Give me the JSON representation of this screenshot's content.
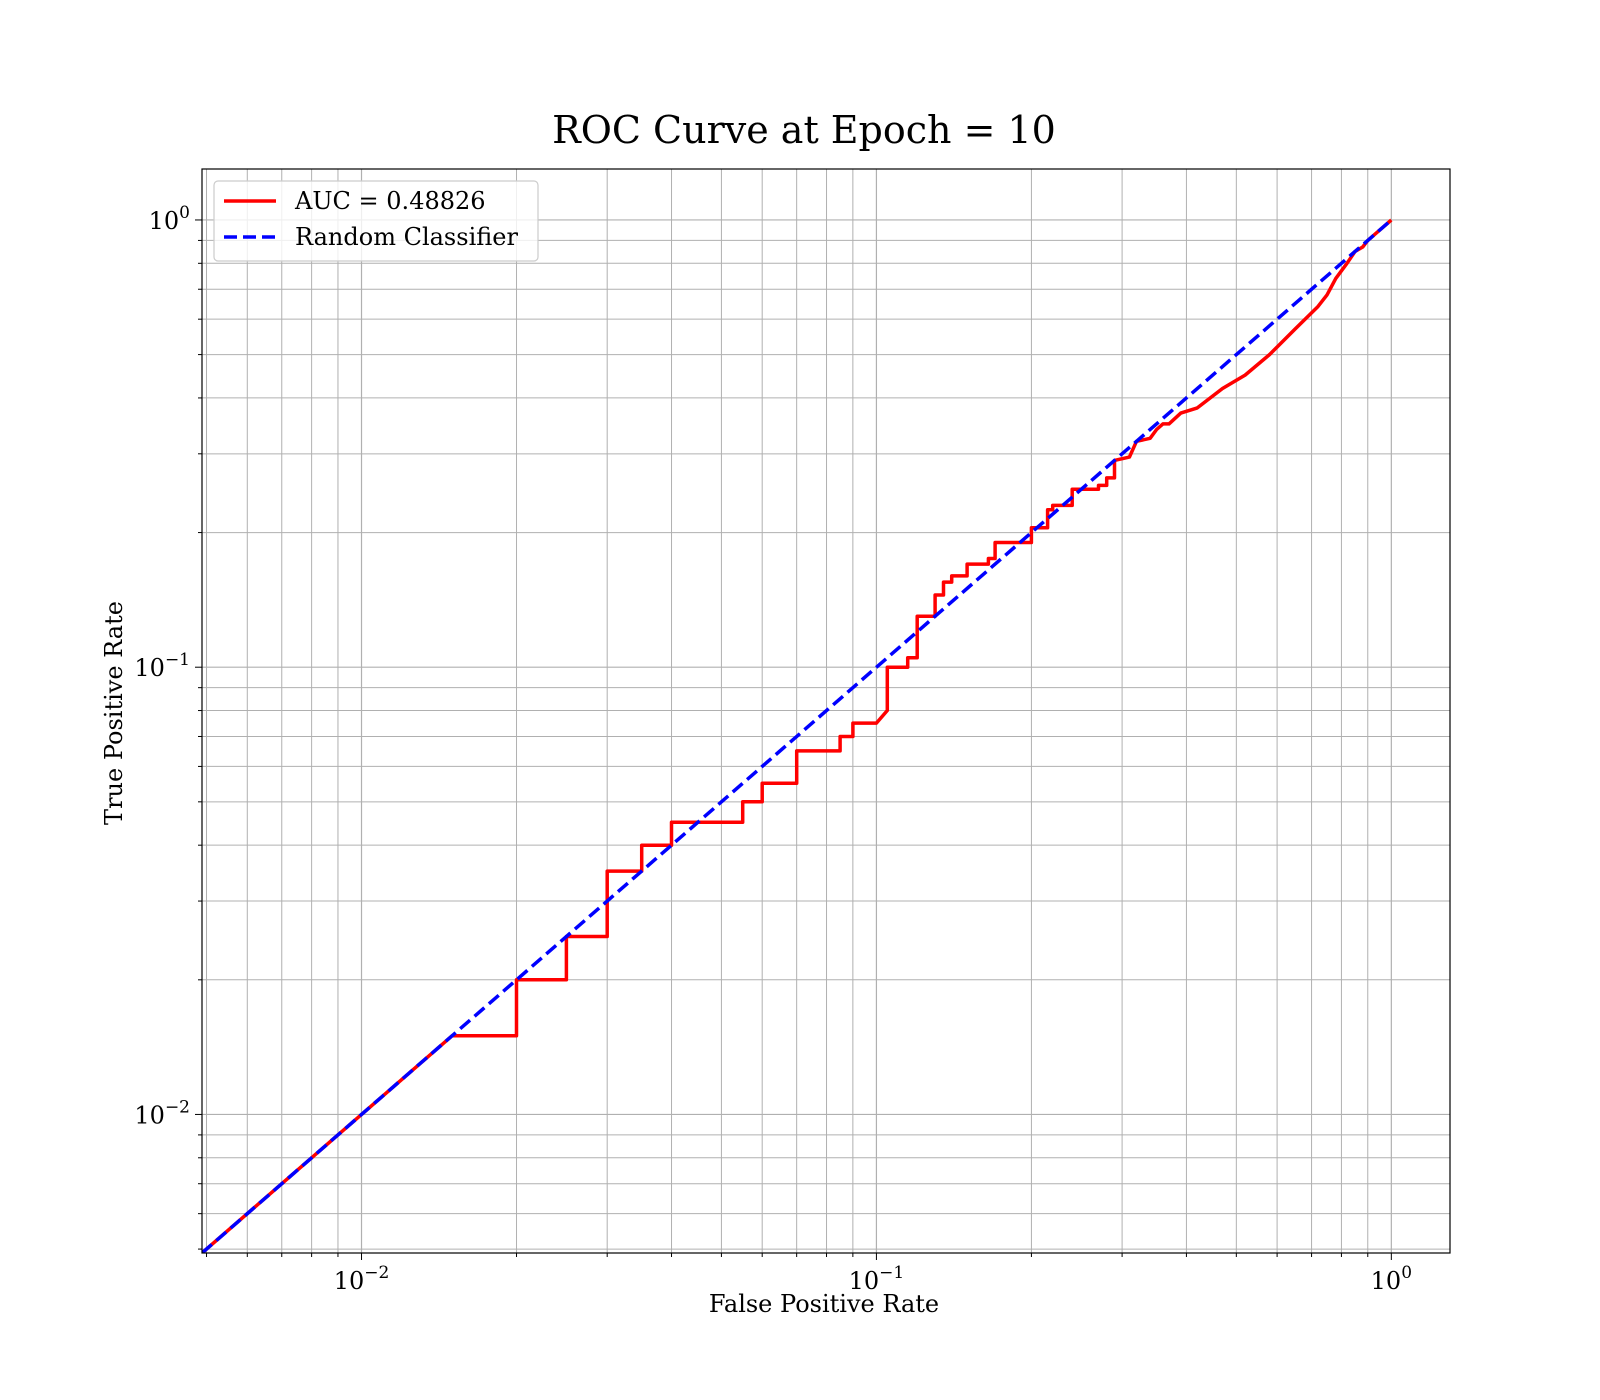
{
  "chart_data": {
    "type": "line",
    "title": "ROC Curve at Epoch = 10",
    "xlabel": "False Positive Rate",
    "ylabel": "True Positive Rate",
    "xscale": "log",
    "yscale": "log",
    "xlim": [
      0.0049,
      1.3
    ],
    "ylim": [
      0.0049,
      1.3
    ],
    "grid": "on (major and minor)",
    "legend_position": "upper left",
    "x_tick_labels": [
      {
        "value": 0.01,
        "base": "10",
        "exp": "−2"
      },
      {
        "value": 0.1,
        "base": "10",
        "exp": "−1"
      },
      {
        "value": 1,
        "base": "10",
        "exp": "0"
      }
    ],
    "y_tick_labels": [
      {
        "value": 0.01,
        "base": "10",
        "exp": "−2"
      },
      {
        "value": 0.1,
        "base": "10",
        "exp": "−1"
      },
      {
        "value": 1,
        "base": "10",
        "exp": "0"
      }
    ],
    "series": [
      {
        "name": "AUC = 0.48826",
        "color": "#ff0000",
        "style": "solid",
        "points": [
          [
            0.0049,
            0.0049
          ],
          [
            0.015,
            0.015
          ],
          [
            0.02,
            0.015
          ],
          [
            0.02,
            0.02
          ],
          [
            0.025,
            0.02
          ],
          [
            0.025,
            0.025
          ],
          [
            0.03,
            0.025
          ],
          [
            0.03,
            0.035
          ],
          [
            0.035,
            0.035
          ],
          [
            0.035,
            0.04
          ],
          [
            0.04,
            0.04
          ],
          [
            0.04,
            0.045
          ],
          [
            0.055,
            0.045
          ],
          [
            0.055,
            0.05
          ],
          [
            0.06,
            0.05
          ],
          [
            0.06,
            0.055
          ],
          [
            0.07,
            0.055
          ],
          [
            0.07,
            0.065
          ],
          [
            0.085,
            0.065
          ],
          [
            0.085,
            0.07
          ],
          [
            0.09,
            0.07
          ],
          [
            0.09,
            0.075
          ],
          [
            0.1,
            0.075
          ],
          [
            0.105,
            0.08
          ],
          [
            0.105,
            0.1
          ],
          [
            0.115,
            0.1
          ],
          [
            0.115,
            0.105
          ],
          [
            0.12,
            0.105
          ],
          [
            0.12,
            0.13
          ],
          [
            0.13,
            0.13
          ],
          [
            0.13,
            0.145
          ],
          [
            0.135,
            0.145
          ],
          [
            0.135,
            0.155
          ],
          [
            0.14,
            0.155
          ],
          [
            0.14,
            0.16
          ],
          [
            0.15,
            0.16
          ],
          [
            0.15,
            0.17
          ],
          [
            0.165,
            0.17
          ],
          [
            0.165,
            0.175
          ],
          [
            0.17,
            0.175
          ],
          [
            0.17,
            0.19
          ],
          [
            0.2,
            0.19
          ],
          [
            0.2,
            0.205
          ],
          [
            0.215,
            0.205
          ],
          [
            0.215,
            0.225
          ],
          [
            0.22,
            0.225
          ],
          [
            0.22,
            0.23
          ],
          [
            0.24,
            0.23
          ],
          [
            0.24,
            0.25
          ],
          [
            0.27,
            0.25
          ],
          [
            0.27,
            0.255
          ],
          [
            0.28,
            0.255
          ],
          [
            0.28,
            0.265
          ],
          [
            0.29,
            0.265
          ],
          [
            0.29,
            0.29
          ],
          [
            0.31,
            0.295
          ],
          [
            0.32,
            0.32
          ],
          [
            0.34,
            0.325
          ],
          [
            0.35,
            0.34
          ],
          [
            0.36,
            0.35
          ],
          [
            0.37,
            0.35
          ],
          [
            0.39,
            0.37
          ],
          [
            0.42,
            0.38
          ],
          [
            0.47,
            0.42
          ],
          [
            0.52,
            0.45
          ],
          [
            0.58,
            0.5
          ],
          [
            0.65,
            0.57
          ],
          [
            0.72,
            0.64
          ],
          [
            0.75,
            0.68
          ],
          [
            0.78,
            0.74
          ],
          [
            0.82,
            0.8
          ],
          [
            0.85,
            0.85
          ],
          [
            0.88,
            0.87
          ],
          [
            0.9,
            0.9
          ],
          [
            0.93,
            0.93
          ],
          [
            0.97,
            0.97
          ],
          [
            1.0,
            1.0
          ]
        ]
      },
      {
        "name": "Random Classifier",
        "color": "#0000ff",
        "style": "dashed",
        "points": [
          [
            0.0049,
            0.0049
          ],
          [
            1.0,
            1.0
          ]
        ]
      }
    ]
  }
}
